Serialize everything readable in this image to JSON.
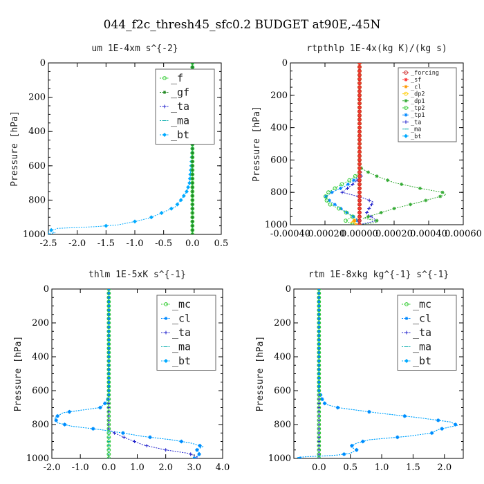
{
  "page_title": "044_f2c_thresh45_sfc0.2  BUDGET at90E,-45N",
  "chart_data": [
    {
      "type": "line",
      "title": "um  1E-4xm s^{-2}",
      "ylabel": "Pressure [hPa]",
      "xlim": [
        -2.5,
        0.5
      ],
      "ylim": [
        1000,
        0
      ],
      "xticks": [
        "-2.5",
        "-2.0",
        "-1.5",
        "-1.0",
        "-0.5",
        "0.0",
        "0.5"
      ],
      "xtick_values": [
        -2.5,
        -2.0,
        -1.5,
        -1.0,
        -0.5,
        0.0,
        0.5
      ],
      "yticks": [
        "0",
        "200",
        "400",
        "600",
        "800",
        "1000"
      ],
      "ytick_values": [
        0,
        200,
        400,
        600,
        800,
        1000
      ],
      "legend_position": "top-right",
      "legend_size": "large",
      "series": [
        {
          "name": "_f",
          "color": "#33cc33",
          "marker": "circle",
          "points": [
            [
              0,
              0
            ],
            [
              0,
              1000
            ]
          ]
        },
        {
          "name": "_gf",
          "color": "#228822",
          "marker": "star",
          "points": [
            [
              0,
              0
            ],
            [
              0,
              1000
            ]
          ]
        },
        {
          "name": "_ta",
          "color": "#2222cc",
          "marker": "plus",
          "points": [
            [
              0,
              0
            ],
            [
              0,
              1000
            ]
          ]
        },
        {
          "name": "_ma",
          "color": "#00aaaa",
          "marker": "dash",
          "points": [
            [
              0,
              0
            ],
            [
              0,
              1000
            ]
          ]
        },
        {
          "name": "_bt",
          "color": "#00aaff",
          "marker": "diamond",
          "points": [
            [
              0,
              0
            ],
            [
              0,
              500
            ],
            [
              -0.02,
              600
            ],
            [
              -0.05,
              700
            ],
            [
              -0.1,
              750
            ],
            [
              -0.2,
              800
            ],
            [
              -0.3,
              840
            ],
            [
              -0.5,
              870
            ],
            [
              -0.75,
              905
            ],
            [
              -1.0,
              925
            ],
            [
              -1.3,
              945
            ],
            [
              -1.7,
              955
            ],
            [
              -2.0,
              960
            ],
            [
              -2.35,
              965
            ],
            [
              -2.38,
              970
            ],
            [
              -2.45,
              975
            ],
            [
              -2.5,
              982
            ],
            [
              -2.38,
              990
            ],
            [
              -2.45,
              995
            ],
            [
              -2.5,
              1000
            ]
          ]
        }
      ]
    },
    {
      "type": "line",
      "title": "rtpthlp  1E-4x(kg K)/(kg s)",
      "ylabel": "Pressure [hPa]",
      "xlim": [
        -0.0004,
        0.0006
      ],
      "ylim": [
        1000,
        0
      ],
      "xticks": [
        "-0.00040",
        "-0.00020",
        "0.00000",
        "0.00020",
        "0.00040",
        "0.00060"
      ],
      "xtick_values": [
        -0.0004,
        -0.0002,
        0.0,
        0.0002,
        0.0004,
        0.0006
      ],
      "yticks": [
        "0",
        "200",
        "400",
        "600",
        "800",
        "1000"
      ],
      "ytick_values": [
        0,
        200,
        400,
        600,
        800,
        1000
      ],
      "legend_position": "top-right",
      "legend_size": "small",
      "series": [
        {
          "name": "_forcing",
          "color": "#cc2222",
          "marker": "circle",
          "points": [
            [
              0,
              0
            ],
            [
              0,
              1000
            ]
          ]
        },
        {
          "name": "_sf",
          "color": "#ff3333",
          "marker": "star",
          "points": [
            [
              0,
              0
            ],
            [
              0,
              1000
            ]
          ]
        },
        {
          "name": "_cl",
          "color": "#ff9900",
          "marker": "star",
          "points": [
            [
              0,
              0
            ],
            [
              0,
              950
            ],
            [
              -2e-05,
              970
            ],
            [
              -5e-05,
              985
            ],
            [
              -2e-05,
              1000
            ]
          ]
        },
        {
          "name": "_dp2",
          "color": "#ffcc00",
          "marker": "circle",
          "points": [
            [
              0,
              0
            ],
            [
              0,
              960
            ],
            [
              -5e-05,
              985
            ],
            [
              0,
              1000
            ]
          ]
        },
        {
          "name": "_dp1",
          "color": "#33aa33",
          "marker": "star",
          "points": [
            [
              0,
              0
            ],
            [
              0,
              630
            ],
            [
              1e-05,
              650
            ],
            [
              4e-05,
              670
            ],
            [
              0.0001,
              700
            ],
            [
              0.0002,
              740
            ],
            [
              0.00035,
              775
            ],
            [
              0.00048,
              800
            ],
            [
              0.0005,
              815
            ],
            [
              0.00045,
              830
            ],
            [
              0.00035,
              860
            ],
            [
              0.0002,
              900
            ],
            [
              8e-05,
              940
            ],
            [
              2e-05,
              960
            ],
            [
              0.0001,
              975
            ],
            [
              0.0001,
              985
            ],
            [
              0,
              1000
            ]
          ]
        },
        {
          "name": "_tp2",
          "color": "#33cc33",
          "marker": "circle",
          "points": [
            [
              0,
              0
            ],
            [
              0,
              680
            ],
            [
              -5e-05,
              720
            ],
            [
              -0.00012,
              760
            ],
            [
              -0.00018,
              800
            ],
            [
              -0.0002,
              830
            ],
            [
              -0.00018,
              870
            ],
            [
              -0.0001,
              910
            ],
            [
              -4e-05,
              950
            ],
            [
              -8e-05,
              975
            ],
            [
              -4e-05,
              1000
            ]
          ]
        },
        {
          "name": "_tp1",
          "color": "#0088ff",
          "marker": "star",
          "points": [
            [
              0,
              0
            ],
            [
              0,
              700
            ],
            [
              -8e-05,
              760
            ],
            [
              -0.00016,
              800
            ],
            [
              -0.0002,
              830
            ],
            [
              -0.00015,
              870
            ],
            [
              -8e-05,
              920
            ],
            [
              -2e-05,
              960
            ],
            [
              0,
              1000
            ]
          ]
        },
        {
          "name": "_ta",
          "color": "#2222cc",
          "marker": "plus",
          "points": [
            [
              0,
              0
            ],
            [
              0,
              650
            ],
            [
              1e-05,
              700
            ],
            [
              -4e-05,
              750
            ],
            [
              -0.0001,
              800
            ],
            [
              1e-05,
              830
            ],
            [
              8e-05,
              860
            ],
            [
              6e-05,
              890
            ],
            [
              4e-05,
              930
            ],
            [
              0.0001,
              975
            ],
            [
              0,
              1000
            ]
          ]
        },
        {
          "name": "_ma",
          "color": "#00aaaa",
          "marker": "dash",
          "points": [
            [
              0,
              0
            ],
            [
              0,
              1000
            ]
          ]
        },
        {
          "name": "_bt",
          "color": "#00aaff",
          "marker": "diamond",
          "points": [
            [
              0,
              0
            ],
            [
              0,
              1000
            ]
          ]
        }
      ]
    },
    {
      "type": "line",
      "title": "thlm  1E-5xK s^{-1}",
      "ylabel": "Pressure [hPa]",
      "xlim": [
        -2.0,
        4.0
      ],
      "ylim": [
        1000,
        0
      ],
      "xticks": [
        "-2.0",
        "-1.0",
        "0.0",
        "1.0",
        "2.0",
        "3.0",
        "4.0"
      ],
      "xtick_values": [
        -2.0,
        -1.0,
        0.0,
        1.0,
        2.0,
        3.0,
        4.0
      ],
      "yticks": [
        "0",
        "200",
        "400",
        "600",
        "800",
        "1000"
      ],
      "ytick_values": [
        0,
        200,
        400,
        600,
        800,
        1000
      ],
      "legend_position": "top-right",
      "legend_size": "large",
      "series": [
        {
          "name": "_mc",
          "color": "#33cc33",
          "marker": "circle",
          "points": [
            [
              0,
              0
            ],
            [
              0,
              1000
            ]
          ]
        },
        {
          "name": "_cl",
          "color": "#0088ff",
          "marker": "star",
          "points": [
            [
              0,
              0
            ],
            [
              0,
              640
            ],
            [
              -0.1,
              670
            ],
            [
              -0.3,
              700
            ],
            [
              -1.6,
              730
            ],
            [
              -1.9,
              760
            ],
            [
              -1.8,
              790
            ],
            [
              -1.3,
              810
            ],
            [
              -0.3,
              830
            ],
            [
              0.5,
              850
            ],
            [
              1.2,
              870
            ],
            [
              2.2,
              890
            ],
            [
              2.9,
              910
            ],
            [
              3.3,
              930
            ],
            [
              3.1,
              950
            ],
            [
              3.2,
              970
            ],
            [
              3.1,
              990
            ],
            [
              3.0,
              1000
            ]
          ]
        },
        {
          "name": "_ta",
          "color": "#2222cc",
          "marker": "plus",
          "points": [
            [
              0,
              0
            ],
            [
              0,
              830
            ],
            [
              0.2,
              850
            ],
            [
              0.6,
              880
            ],
            [
              1.2,
              920
            ],
            [
              2.0,
              950
            ],
            [
              2.8,
              970
            ],
            [
              3.1,
              990
            ],
            [
              3.1,
              1000
            ]
          ]
        },
        {
          "name": "_ma",
          "color": "#00aaaa",
          "marker": "dash",
          "points": [
            [
              0,
              0
            ],
            [
              0,
              1000
            ]
          ]
        },
        {
          "name": "_bt",
          "color": "#00aaff",
          "marker": "diamond",
          "points": [
            [
              0,
              0
            ],
            [
              0,
              640
            ],
            [
              -0.1,
              670
            ],
            [
              -0.3,
              700
            ],
            [
              -1.6,
              730
            ],
            [
              -1.9,
              760
            ],
            [
              -1.8,
              790
            ],
            [
              -1.3,
              810
            ],
            [
              -0.3,
              830
            ],
            [
              0.5,
              850
            ],
            [
              1.2,
              870
            ],
            [
              2.2,
              890
            ],
            [
              2.9,
              910
            ],
            [
              3.3,
              930
            ],
            [
              3.1,
              950
            ],
            [
              3.2,
              970
            ],
            [
              3.1,
              990
            ],
            [
              3.0,
              1000
            ]
          ]
        }
      ]
    },
    {
      "type": "line",
      "title": "rtm  1E-8xkg kg^{-1} s^{-1}",
      "ylabel": "Pressure [hPa]",
      "xlim": [
        -0.4,
        2.3
      ],
      "ylim": [
        1000,
        0
      ],
      "xticks": [
        "0.0",
        "0.5",
        "1.0",
        "1.5",
        "2.0"
      ],
      "xtick_values": [
        0.0,
        0.5,
        1.0,
        1.5,
        2.0
      ],
      "yticks": [
        "0",
        "200",
        "400",
        "600",
        "800",
        "1000"
      ],
      "ytick_values": [
        0,
        200,
        400,
        600,
        800,
        1000
      ],
      "legend_position": "top-right",
      "legend_size": "large",
      "series": [
        {
          "name": "_mc",
          "color": "#33cc33",
          "marker": "circle",
          "points": [
            [
              0,
              0
            ],
            [
              0,
              1000
            ]
          ]
        },
        {
          "name": "_cl",
          "color": "#0088ff",
          "marker": "star",
          "points": [
            [
              0,
              0
            ],
            [
              0,
              600
            ],
            [
              0.05,
              650
            ],
            [
              0.1,
              680
            ],
            [
              0.3,
              700
            ],
            [
              0.9,
              730
            ],
            [
              1.6,
              760
            ],
            [
              2.1,
              785
            ],
            [
              2.2,
              805
            ],
            [
              1.9,
              830
            ],
            [
              1.8,
              850
            ],
            [
              1.4,
              870
            ],
            [
              0.8,
              890
            ],
            [
              0.6,
              910
            ],
            [
              0.5,
              930
            ],
            [
              0.6,
              950
            ],
            [
              0.5,
              970
            ],
            [
              0.3,
              980
            ],
            [
              0.1,
              985
            ],
            [
              -0.2,
              990
            ],
            [
              -0.35,
              995
            ],
            [
              -0.3,
              1000
            ]
          ]
        },
        {
          "name": "_ta",
          "color": "#2222cc",
          "marker": "plus",
          "points": [
            [
              0,
              0
            ],
            [
              0,
              1000
            ]
          ]
        },
        {
          "name": "_ma",
          "color": "#00aaaa",
          "marker": "dash",
          "points": [
            [
              0,
              0
            ],
            [
              0,
              1000
            ]
          ]
        },
        {
          "name": "_bt",
          "color": "#00aaff",
          "marker": "diamond",
          "points": [
            [
              0,
              0
            ],
            [
              0,
              600
            ],
            [
              0.05,
              650
            ],
            [
              0.1,
              680
            ],
            [
              0.3,
              700
            ],
            [
              0.9,
              730
            ],
            [
              1.6,
              760
            ],
            [
              2.1,
              785
            ],
            [
              2.2,
              805
            ],
            [
              1.9,
              830
            ],
            [
              1.8,
              850
            ],
            [
              1.4,
              870
            ],
            [
              0.8,
              890
            ],
            [
              0.6,
              910
            ],
            [
              0.5,
              930
            ],
            [
              0.6,
              950
            ],
            [
              0.5,
              970
            ],
            [
              0.3,
              980
            ],
            [
              0.1,
              985
            ],
            [
              -0.2,
              990
            ],
            [
              -0.35,
              995
            ],
            [
              -0.3,
              1000
            ]
          ]
        }
      ]
    }
  ]
}
